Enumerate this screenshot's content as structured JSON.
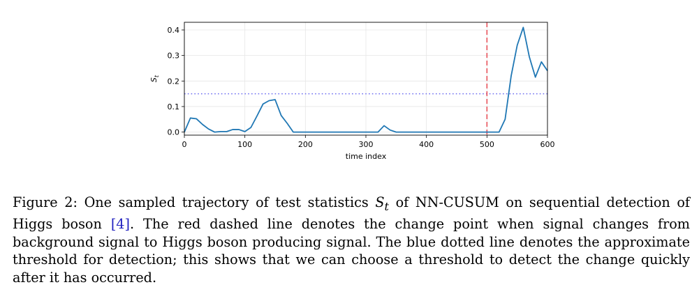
{
  "chart_data": {
    "type": "line",
    "xlabel": "time index",
    "ylabel": "S",
    "ylabel_sub": "t",
    "xlim": [
      0,
      600
    ],
    "ylim": [
      -0.012,
      0.43
    ],
    "xticks": [
      0,
      100,
      200,
      300,
      400,
      500,
      600
    ],
    "yticks": [
      0.0,
      0.1,
      0.2,
      0.3,
      0.4
    ],
    "ytick_labels": [
      "0.0",
      "0.1",
      "0.2",
      "0.3",
      "0.4"
    ],
    "grid": true,
    "series": [
      {
        "name": "S_t",
        "color": "#1f77b4",
        "x": [
          0,
          10,
          20,
          30,
          40,
          50,
          60,
          70,
          80,
          90,
          100,
          110,
          120,
          130,
          140,
          150,
          160,
          170,
          180,
          190,
          200,
          300,
          310,
          320,
          330,
          340,
          350,
          400,
          450,
          500,
          520,
          530,
          540,
          550,
          560,
          570,
          580,
          590,
          600
        ],
        "y": [
          0.0,
          0.055,
          0.052,
          0.03,
          0.012,
          0.0,
          0.002,
          0.002,
          0.01,
          0.01,
          0.002,
          0.018,
          0.063,
          0.11,
          0.123,
          0.127,
          0.065,
          0.034,
          0.0,
          0.0,
          0.0,
          0.0,
          0.0,
          0.0,
          0.025,
          0.008,
          0.0,
          0.0,
          0.0,
          0.0,
          0.0,
          0.05,
          0.22,
          0.34,
          0.41,
          0.295,
          0.215,
          0.275,
          0.24
        ]
      }
    ],
    "change_point": {
      "x": 500,
      "color": "#e8525a",
      "style": "dashed"
    },
    "threshold": {
      "y": 0.15,
      "color": "#6b6bf0",
      "style": "dotted"
    }
  },
  "caption": {
    "label": "Figure 2:",
    "part1": "One sampled trajectory of test statistics",
    "stat_symbol": "S",
    "stat_sub": "t",
    "part2": "of NN-CUSUM on sequential detection of Higgs boson",
    "ref": "[4]",
    "part3": ". The red dashed line denotes the change point when signal changes from background signal to Higgs boson producing signal. The blue dotted line denotes the approximate threshold for detection; this shows that we can choose a threshold to detect the change quickly after it has occurred."
  }
}
